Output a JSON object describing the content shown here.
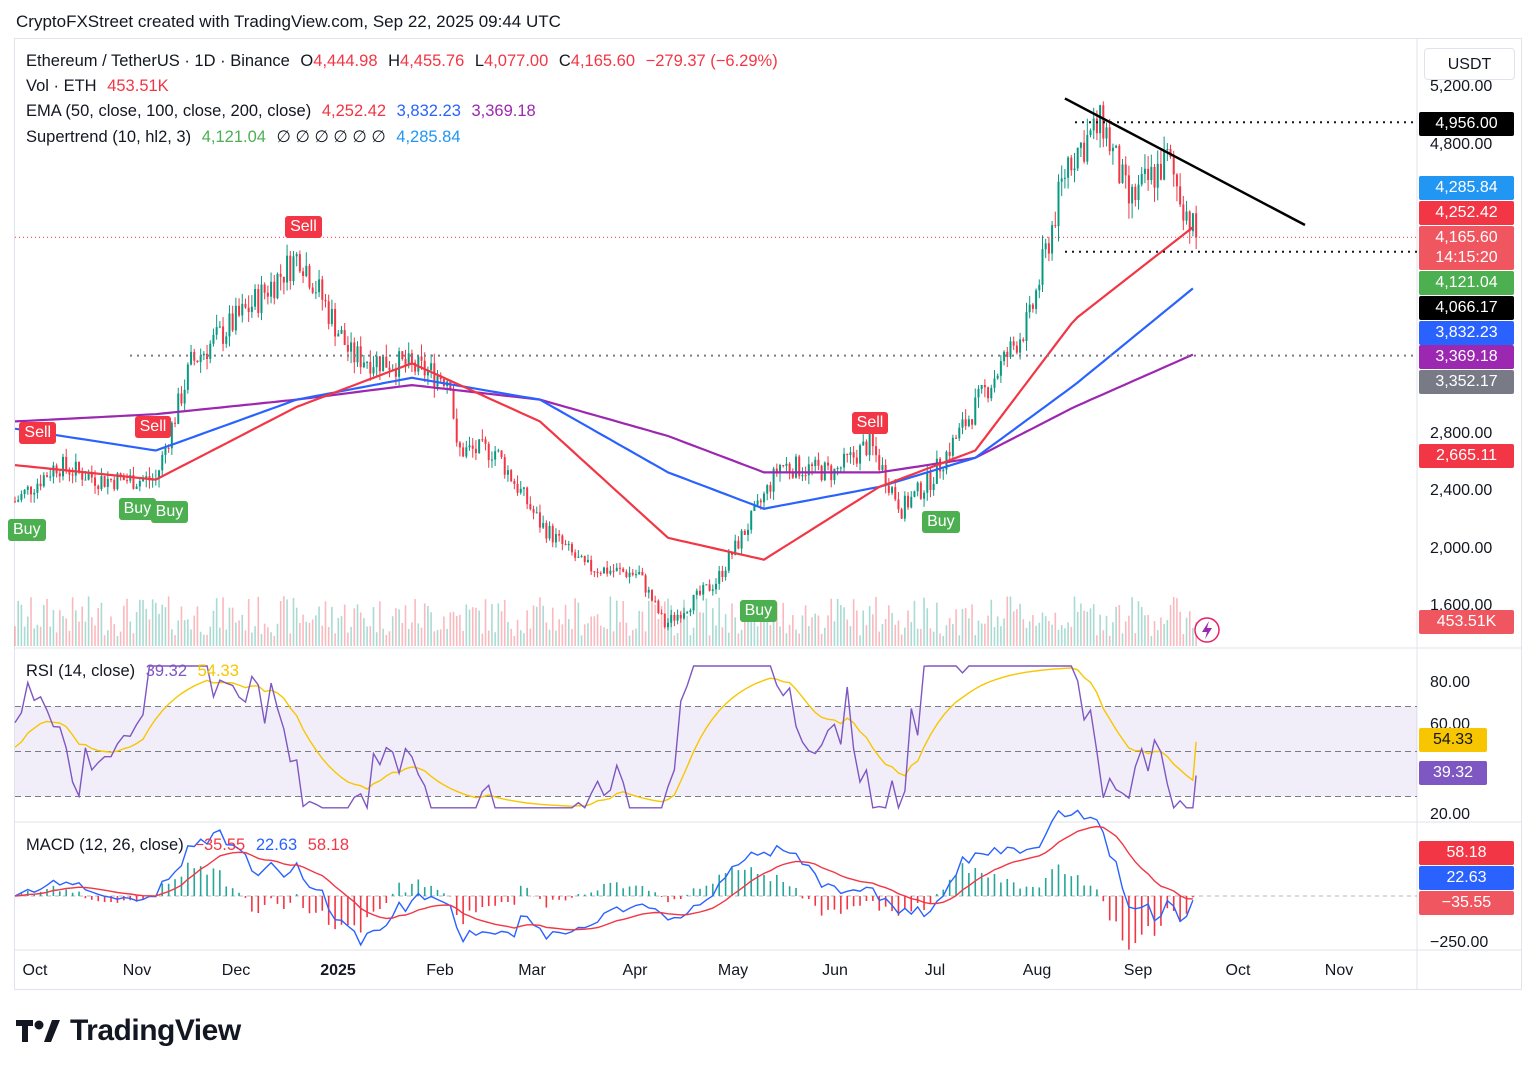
{
  "header": {
    "caption": "CryptoFXStreet created with TradingView.com, Sep 22, 2025 09:44 UTC"
  },
  "currency_button": "USDT",
  "legend": {
    "symbol": "Ethereum / TetherUS · 1D · Binance",
    "open_label": "O",
    "open": "4,444.98",
    "high_label": "H",
    "high": "4,455.76",
    "low_label": "L",
    "low": "4,077.00",
    "close_label": "C",
    "close": "4,165.60",
    "change": "−279.37 (−6.29%)",
    "vol_label": "Vol · ETH",
    "vol": "453.51K",
    "ema_label": "EMA (50, close, 100, close, 200, close)",
    "ema50": "4,252.42",
    "ema100": "3,832.23",
    "ema200": "3,369.18",
    "st_label": "Supertrend (10, hl2, 3)",
    "st_up": "4,121.04",
    "st_nulls": "∅ ∅ ∅ ∅ ∅ ∅",
    "st_down": "4,285.84"
  },
  "rsi_legend": {
    "label": "RSI (14, close)",
    "rsi": "39.32",
    "ma": "54.33"
  },
  "macd_legend": {
    "label": "MACD (12, 26, close)",
    "hist": "−35.55",
    "macd": "22.63",
    "signal": "58.18"
  },
  "price_axis_labels": [
    "5,200.00",
    "4,800.00",
    "2,800.00",
    "2,400.00",
    "2,000.00",
    "1,600.00"
  ],
  "price_boxes": [
    {
      "value": "4,956.00",
      "color": "#000000"
    },
    {
      "value": "4,285.84",
      "color": "#2196f3"
    },
    {
      "value": "4,252.42",
      "color": "#f23645"
    },
    {
      "value": "4,165.60",
      "color": "#f0565f"
    },
    {
      "value": "14:15:20",
      "color": "#f0565f"
    },
    {
      "value": "4,121.04",
      "color": "#4caf50"
    },
    {
      "value": "4,066.17",
      "color": "#000000"
    },
    {
      "value": "3,832.23",
      "color": "#2962ff"
    },
    {
      "value": "3,369.18",
      "color": "#9c27b0"
    },
    {
      "value": "3,352.17",
      "color": "#787b86"
    },
    {
      "value": "2,665.11",
      "color": "#f23645"
    },
    {
      "value": "453.51K",
      "color": "#f0565f"
    }
  ],
  "rsi_axis_labels": [
    "80.00",
    "60.00",
    "20.00"
  ],
  "rsi_boxes": [
    {
      "value": "54.33",
      "color": "#f7c600",
      "text": "#131722"
    },
    {
      "value": "39.32",
      "color": "#7e57c2",
      "text": "#ffffff"
    }
  ],
  "macd_axis_labels": [
    "−250.00"
  ],
  "macd_boxes": [
    {
      "value": "58.18",
      "color": "#f23645"
    },
    {
      "value": "22.63",
      "color": "#2962ff"
    },
    {
      "value": "−35.55",
      "color": "#f0565f"
    }
  ],
  "time_labels": [
    {
      "text": "Oct",
      "bold": false
    },
    {
      "text": "Nov",
      "bold": false
    },
    {
      "text": "Dec",
      "bold": false
    },
    {
      "text": "2025",
      "bold": true
    },
    {
      "text": "Feb",
      "bold": false
    },
    {
      "text": "Mar",
      "bold": false
    },
    {
      "text": "Apr",
      "bold": false
    },
    {
      "text": "May",
      "bold": false
    },
    {
      "text": "Jun",
      "bold": false
    },
    {
      "text": "Jul",
      "bold": false
    },
    {
      "text": "Aug",
      "bold": false
    },
    {
      "text": "Sep",
      "bold": false
    },
    {
      "text": "Oct",
      "bold": false
    },
    {
      "text": "Nov",
      "bold": false
    }
  ],
  "signals": [
    {
      "label": "Sell",
      "type": "sell",
      "date": "2024-09-25"
    },
    {
      "label": "Buy",
      "type": "buy",
      "date": "2024-10-26"
    },
    {
      "label": "Sell",
      "type": "sell",
      "date": "2024-10-31"
    },
    {
      "label": "Buy",
      "type": "buy",
      "date": "2024-11-05"
    },
    {
      "label": "Sell",
      "type": "sell",
      "date": "2024-12-17"
    },
    {
      "label": "Buy",
      "type": "buy",
      "date": "2025-05-08"
    },
    {
      "label": "Sell",
      "type": "sell",
      "date": "2025-06-12"
    },
    {
      "label": "Buy",
      "type": "buy",
      "date": "2025-07-04"
    },
    {
      "label": "Buy",
      "type": "buy",
      "date": "2024-09-18"
    }
  ],
  "brand": {
    "logo_text": "TradingView"
  },
  "chart_data": {
    "type": "line",
    "title": "Ethereum / TetherUS · 1D · Binance",
    "x_label": "",
    "y_label": "USDT",
    "ylim": [
      1400,
      5300
    ],
    "price_series": {
      "name": "ETH/USDT close (approx.)",
      "x": [
        "2024-09-18",
        "2024-10-01",
        "2024-10-15",
        "2024-11-01",
        "2024-11-12",
        "2024-12-01",
        "2024-12-16",
        "2025-01-01",
        "2025-01-15",
        "2025-02-01",
        "2025-02-03",
        "2025-02-15",
        "2025-03-01",
        "2025-03-15",
        "2025-04-01",
        "2025-04-09",
        "2025-04-25",
        "2025-05-08",
        "2025-05-15",
        "2025-06-01",
        "2025-06-12",
        "2025-06-22",
        "2025-07-01",
        "2025-07-15",
        "2025-08-01",
        "2025-08-13",
        "2025-08-24",
        "2025-09-01",
        "2025-09-13",
        "2025-09-22"
      ],
      "y": [
        2350,
        2600,
        2500,
        2500,
        3300,
        3700,
        4050,
        3350,
        3300,
        3200,
        2700,
        2700,
        2200,
        1900,
        1850,
        1500,
        1800,
        2300,
        2600,
        2550,
        2750,
        2300,
        2500,
        3000,
        3600,
        4700,
        4950,
        4400,
        4700,
        4165.6
      ]
    },
    "ema50": {
      "name": "EMA 50",
      "x": [
        "2024-09-18",
        "2024-11-01",
        "2024-12-15",
        "2025-01-20",
        "2025-03-01",
        "2025-04-10",
        "2025-05-10",
        "2025-06-15",
        "2025-07-15",
        "2025-08-15",
        "2025-09-22"
      ],
      "y": [
        2600,
        2500,
        3000,
        3300,
        2900,
        2100,
        1950,
        2450,
        2700,
        3600,
        4252.42
      ]
    },
    "ema100": {
      "name": "EMA 100",
      "x": [
        "2024-09-18",
        "2024-11-01",
        "2024-12-15",
        "2025-01-20",
        "2025-03-01",
        "2025-04-10",
        "2025-05-10",
        "2025-06-15",
        "2025-07-15",
        "2025-08-15",
        "2025-09-22"
      ],
      "y": [
        2850,
        2700,
        3050,
        3200,
        3050,
        2550,
        2300,
        2450,
        2650,
        3150,
        3832.23
      ]
    },
    "ema200": {
      "name": "EMA 200",
      "x": [
        "2024-09-18",
        "2024-11-01",
        "2024-12-15",
        "2025-01-20",
        "2025-03-01",
        "2025-04-10",
        "2025-05-10",
        "2025-06-15",
        "2025-07-15",
        "2025-08-15",
        "2025-09-22"
      ],
      "y": [
        2900,
        2950,
        3050,
        3150,
        3050,
        2800,
        2550,
        2550,
        2650,
        3000,
        3369.18
      ]
    },
    "levels": [
      {
        "name": "resistance",
        "y": 4956.0
      },
      {
        "name": "support",
        "y": 4066.17
      },
      {
        "name": "horizontal",
        "y": 3352.17
      }
    ],
    "trendline": {
      "x": [
        "2025-08-12",
        "2025-10-26"
      ],
      "y": [
        5120,
        4250
      ]
    },
    "rsi": {
      "rsi": 39.32,
      "ma": 54.33,
      "bands": [
        70,
        50,
        30
      ]
    },
    "macd": {
      "macd": 22.63,
      "signal": 58.18,
      "histogram": -35.55
    }
  }
}
